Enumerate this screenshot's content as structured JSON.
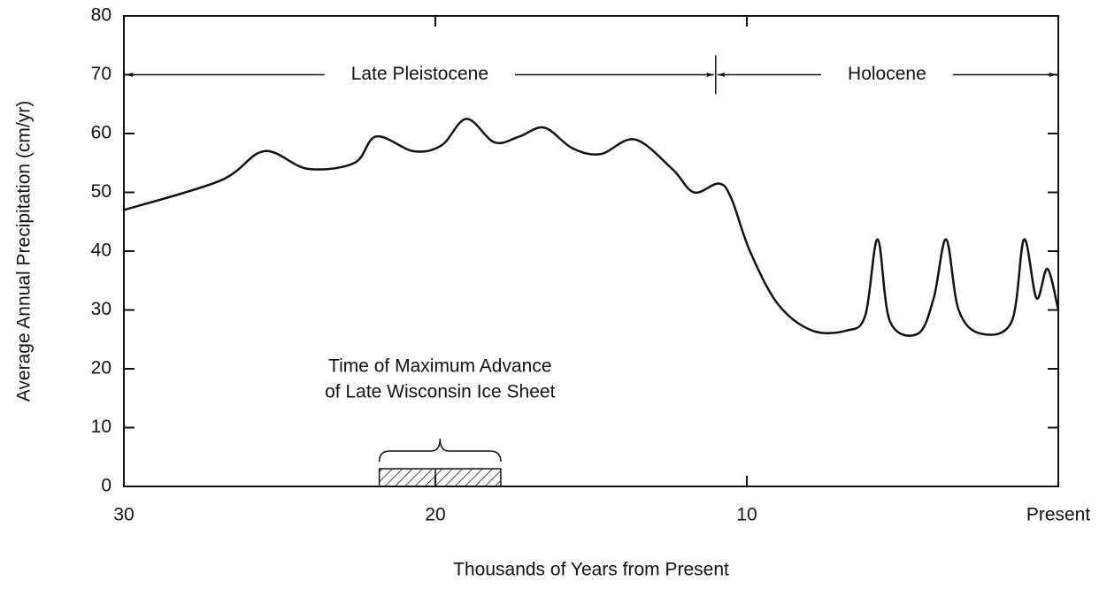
{
  "chart_data": {
    "type": "line",
    "xlabel": "Thousands of Years from Present",
    "ylabel": "Average Annual Precipitation (cm/yr)",
    "xlim": [
      30,
      0
    ],
    "ylim": [
      0,
      80
    ],
    "xticks": [
      30,
      20,
      10,
      {
        "value": 0,
        "label": "Present"
      }
    ],
    "yticks": [
      0,
      10,
      20,
      30,
      40,
      50,
      60,
      70,
      80
    ],
    "color": "#111111",
    "x": [
      30,
      26.9,
      25.5,
      24.1,
      22.6,
      21.9,
      20.7,
      19.8,
      19.0,
      18.1,
      17.3,
      16.5,
      15.6,
      14.7,
      13.6,
      12.4,
      11.7,
      10.9,
      10.5,
      9.9,
      9.0,
      7.9,
      6.8,
      6.2,
      5.8,
      5.4,
      4.5,
      4.0,
      3.6,
      3.2,
      2.5,
      1.5,
      1.1,
      0.7,
      0.35,
      0
    ],
    "values": [
      47,
      52,
      57,
      54,
      55,
      59.5,
      57,
      58,
      62.5,
      58.5,
      59.5,
      61,
      57.5,
      56.5,
      59,
      54,
      50,
      51.5,
      49,
      40,
      31,
      26.5,
      26.5,
      29,
      42,
      28,
      26,
      32,
      42,
      30,
      26,
      28,
      42,
      32,
      37,
      30
    ],
    "periods": [
      {
        "label": "Late Pleistocene",
        "start": 30,
        "end": 11
      },
      {
        "label": "Holocene",
        "start": 11,
        "end": 0
      }
    ],
    "period_y": 70,
    "ice_sheet": {
      "label": [
        "Time of Maximum Advance",
        "of Late Wisconsin Ice Sheet"
      ],
      "start": 21.8,
      "end": 17.9,
      "height": 3,
      "mid": 20
    }
  }
}
